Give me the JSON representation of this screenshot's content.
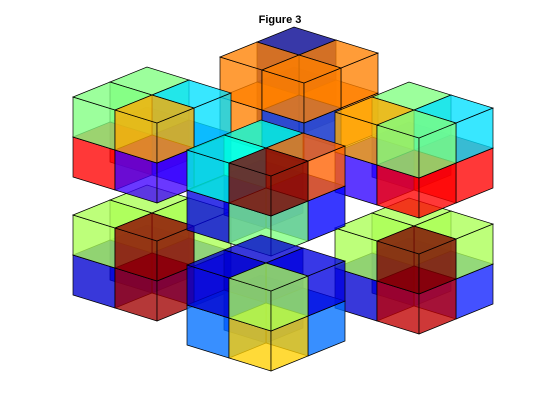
{
  "figure": {
    "title": "Figure 3"
  }
}
